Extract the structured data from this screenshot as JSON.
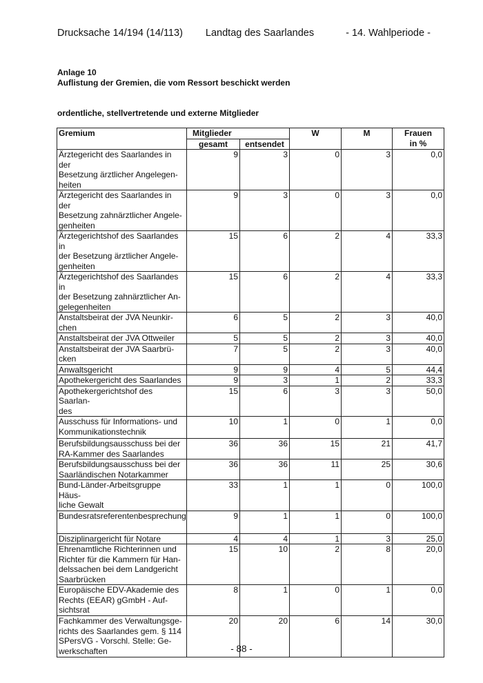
{
  "header": {
    "doc_number": "Drucksache 14/194 (14/113)",
    "institution": "Landtag des Saarlandes",
    "period": "- 14. Wahlperiode -"
  },
  "annex_label": "Anlage 10",
  "annex_title": "Auflistung der Gremien, die vom Ressort beschickt werden",
  "section_title": "ordentliche, stellvertretende und externe Mitglieder",
  "table": {
    "headers": {
      "gremium": "Gremium",
      "mitglieder": "Mitglieder",
      "gesamt": "gesamt",
      "entsendet": "entsendet",
      "w": "W",
      "m": "M",
      "frauen": "Frauen",
      "in_percent": "in %"
    },
    "rows": [
      {
        "gremium": "Ärztegericht des Saarlandes in der\nBesetzung ärztlicher Angelegen-\nheiten",
        "gesamt": "9",
        "entsendet": "3",
        "w": "0",
        "m": "3",
        "frauen": "0,0"
      },
      {
        "gremium": "Ärztegericht des Saarlandes in der\nBesetzung zahnärztlicher Angele-\ngenheiten",
        "gesamt": "9",
        "entsendet": "3",
        "w": "0",
        "m": "3",
        "frauen": "0,0"
      },
      {
        "gremium": "Ärztegerichtshof des Saarlandes in\nder Besetzung ärztlicher Angele-\ngenheiten",
        "gesamt": "15",
        "entsendet": "6",
        "w": "2",
        "m": "4",
        "frauen": "33,3"
      },
      {
        "gremium": "Ärztegerichtshof des Saarlandes in\nder Besetzung zahnärztlicher An-\ngelegenheiten",
        "gesamt": "15",
        "entsendet": "6",
        "w": "2",
        "m": "4",
        "frauen": "33,3"
      },
      {
        "gremium": "Anstaltsbeirat der JVA Neunkir-\nchen",
        "gesamt": "6",
        "entsendet": "5",
        "w": "2",
        "m": "3",
        "frauen": "40,0"
      },
      {
        "gremium": "Anstaltsbeirat der JVA Ottweiler",
        "gesamt": "5",
        "entsendet": "5",
        "w": "2",
        "m": "3",
        "frauen": "40,0"
      },
      {
        "gremium": "Anstaltsbeirat der JVA Saarbrü-\ncken",
        "gesamt": "7",
        "entsendet": "5",
        "w": "2",
        "m": "3",
        "frauen": "40,0"
      },
      {
        "gremium": "Anwaltsgericht",
        "gesamt": "9",
        "entsendet": "9",
        "w": "4",
        "m": "5",
        "frauen": "44,4"
      },
      {
        "gremium": "Apothekergericht des Saarlandes",
        "gesamt": "9",
        "entsendet": "3",
        "w": "1",
        "m": "2",
        "frauen": "33,3"
      },
      {
        "gremium": "Apothekergerichtshof des Saarlan-\ndes",
        "gesamt": "15",
        "entsendet": "6",
        "w": "3",
        "m": "3",
        "frauen": "50,0"
      },
      {
        "gremium": "Ausschuss für Informations- und\nKommunikationstechnik",
        "gesamt": "10",
        "entsendet": "1",
        "w": "0",
        "m": "1",
        "frauen": "0,0"
      },
      {
        "gremium": "Berufsbildungsausschuss bei der\nRA-Kammer des Saarlandes",
        "gesamt": "36",
        "entsendet": "36",
        "w": "15",
        "m": "21",
        "frauen": "41,7"
      },
      {
        "gremium": "Berufsbildungsausschuss bei der\nSaarländischen Notarkammer",
        "gesamt": "36",
        "entsendet": "36",
        "w": "11",
        "m": "25",
        "frauen": "30,6"
      },
      {
        "gremium": "Bund-Länder-Arbeitsgruppe Häus-\nliche Gewalt",
        "gesamt": "33",
        "entsendet": "1",
        "w": "1",
        "m": "0",
        "frauen": "100,0"
      },
      {
        "gremium": "Bundesratsreferentenbesprechung",
        "gesamt": "9",
        "entsendet": "1",
        "w": "1",
        "m": "0",
        "frauen": "100,0"
      },
      {
        "gremium": "Disziplinargericht für Notare",
        "gesamt": "4",
        "entsendet": "4",
        "w": "1",
        "m": "3",
        "frauen": "25,0"
      },
      {
        "gremium": "Ehrenamtliche Richterinnen und\nRichter für die Kammern für Han-\ndelssachen bei dem Landgericht\nSaarbrücken",
        "gesamt": "15",
        "entsendet": "10",
        "w": "2",
        "m": "8",
        "frauen": "20,0"
      },
      {
        "gremium": "Europäische EDV-Akademie des\nRechts (EEAR) gGmbH - Auf-\nsichtsrat",
        "gesamt": "8",
        "entsendet": "1",
        "w": "0",
        "m": "1",
        "frauen": "0,0"
      },
      {
        "gremium": "Fachkammer des Verwaltungsge-\nrichts des Saarlandes gem. § 114\nSPersVG - Vorschl. Stelle: Ge-\nwerkschaften",
        "gesamt": "20",
        "entsendet": "20",
        "w": "6",
        "m": "14",
        "frauen": "30,0"
      }
    ]
  },
  "page_number": "- 88 -"
}
